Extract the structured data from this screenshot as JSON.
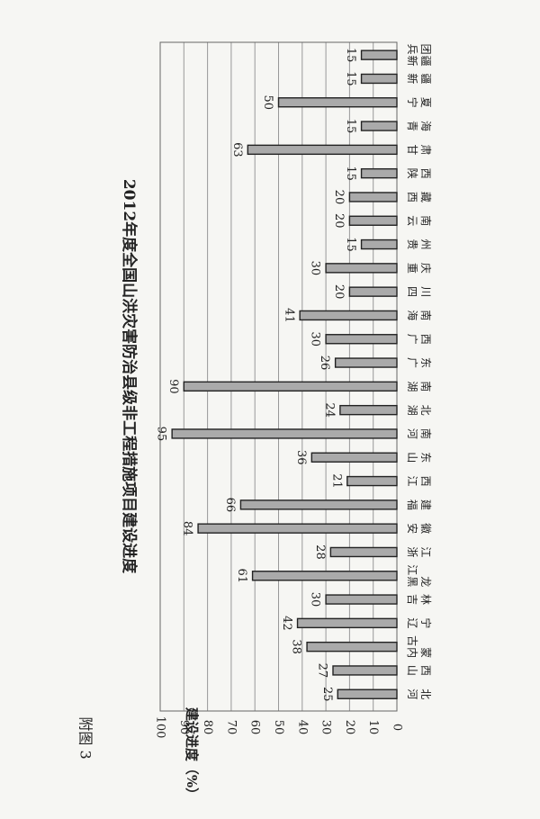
{
  "annex_label": "附图 3",
  "chart_data": {
    "type": "bar",
    "title": "2012年度全国山洪灾害防治县级非工程措施项目建设进度",
    "xlabel": "",
    "ylabel": "建设进度（%）",
    "ylim": [
      0,
      100
    ],
    "yticks": [
      0,
      10,
      20,
      30,
      40,
      50,
      60,
      70,
      80,
      90,
      100
    ],
    "grid": true,
    "bar_color": "#aaaaaa",
    "categories": [
      "河北",
      "山西",
      "内蒙古",
      "辽宁",
      "吉林",
      "黑龙江",
      "浙江",
      "安徽",
      "福建",
      "江西",
      "山东",
      "河南",
      "湖北",
      "湖南",
      "广东",
      "广西",
      "海南",
      "四川",
      "重庆",
      "贵州",
      "云南",
      "西藏",
      "陕西",
      "甘肃",
      "青海",
      "宁夏",
      "新疆",
      "新疆兵团"
    ],
    "values": [
      25,
      27,
      38,
      42,
      30,
      61,
      28,
      84,
      66,
      21,
      36,
      95,
      24,
      90,
      26,
      30,
      41,
      20,
      30,
      15,
      20,
      20,
      15,
      63,
      15,
      50,
      15,
      15
    ]
  }
}
